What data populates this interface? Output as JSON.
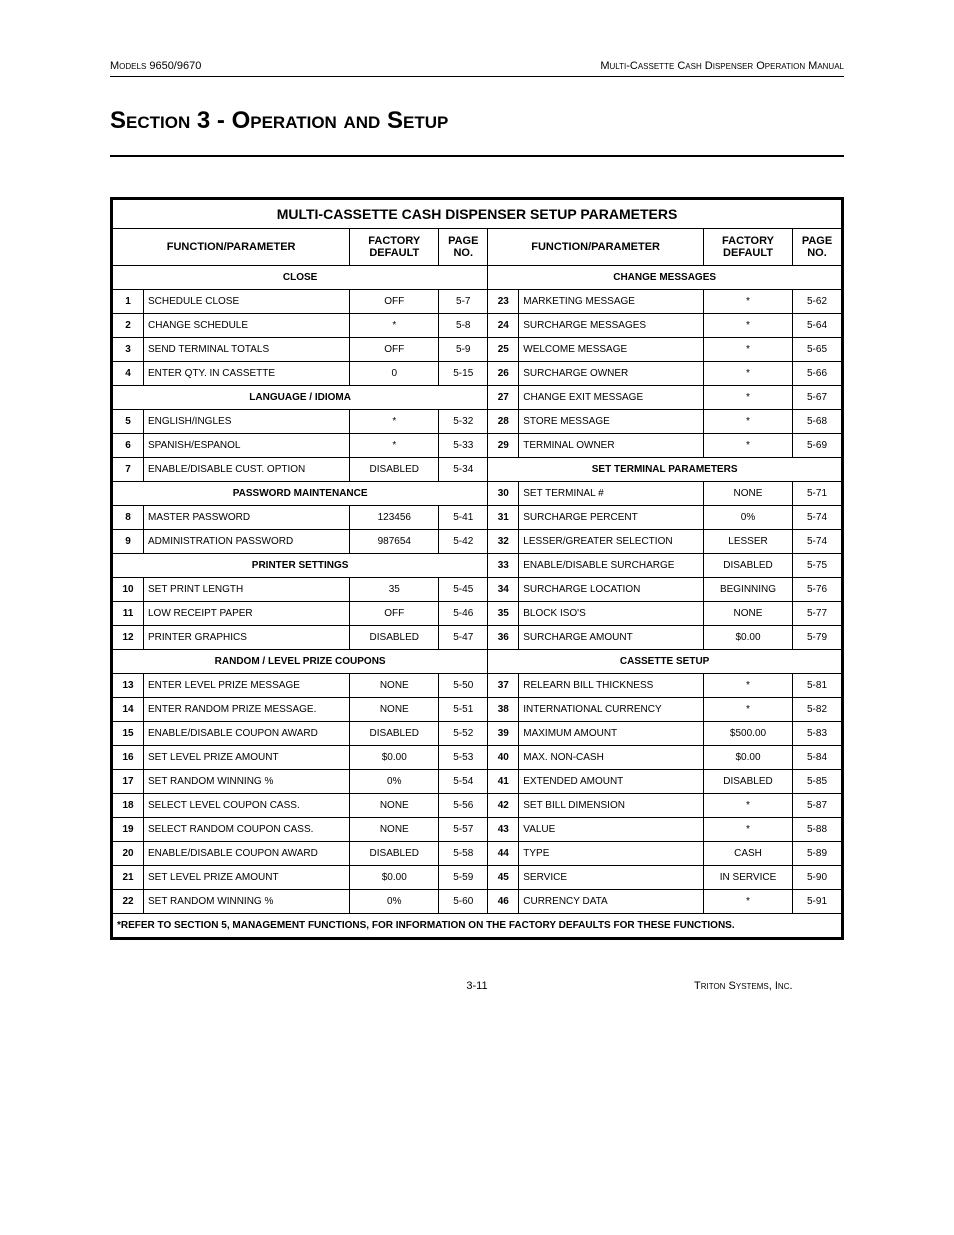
{
  "header": {
    "left": "Models 9650/9670",
    "right": "Multi-Cassette Cash Dispenser Operation Manual"
  },
  "section_title": "Section 3 - Operation and Setup",
  "table": {
    "title": "MULTI-CASSETTE CASH DISPENSER SETUP PARAMETERS",
    "col_headers": {
      "func": "FUNCTION/PARAMETER",
      "def": "FACTORY DEFAULT",
      "page": "PAGE NO."
    },
    "left": [
      {
        "type": "sub",
        "label": "CLOSE"
      },
      {
        "n": "1",
        "p": "SCHEDULE CLOSE",
        "d": "OFF",
        "pg": "5-7"
      },
      {
        "n": "2",
        "p": "CHANGE SCHEDULE",
        "d": "*",
        "pg": "5-8"
      },
      {
        "n": "3",
        "p": "SEND TERMINAL TOTALS",
        "d": "OFF",
        "pg": "5-9"
      },
      {
        "n": "4",
        "p": "ENTER QTY. IN CASSETTE",
        "d": "0",
        "pg": "5-15"
      },
      {
        "type": "sub",
        "label": "LANGUAGE / IDIOMA"
      },
      {
        "n": "5",
        "p": "ENGLISH/INGLES",
        "d": "*",
        "pg": "5-32"
      },
      {
        "n": "6",
        "p": "SPANISH/ESPANOL",
        "d": "*",
        "pg": "5-33"
      },
      {
        "n": "7",
        "p": "ENABLE/DISABLE CUST. OPTION",
        "d": "DISABLED",
        "pg": "5-34"
      },
      {
        "type": "sub",
        "label": "PASSWORD MAINTENANCE"
      },
      {
        "n": "8",
        "p": "MASTER PASSWORD",
        "d": "123456",
        "pg": "5-41"
      },
      {
        "n": "9",
        "p": "ADMINISTRATION PASSWORD",
        "d": "987654",
        "pg": "5-42"
      },
      {
        "type": "sub",
        "label": "PRINTER SETTINGS"
      },
      {
        "n": "10",
        "p": "SET PRINT LENGTH",
        "d": "35",
        "pg": "5-45"
      },
      {
        "n": "11",
        "p": "LOW RECEIPT PAPER",
        "d": "OFF",
        "pg": "5-46"
      },
      {
        "n": "12",
        "p": "PRINTER GRAPHICS",
        "d": "DISABLED",
        "pg": "5-47"
      },
      {
        "type": "sub",
        "label": "RANDOM / LEVEL PRIZE COUPONS"
      },
      {
        "n": "13",
        "p": "ENTER LEVEL PRIZE MESSAGE",
        "d": "NONE",
        "pg": "5-50"
      },
      {
        "n": "14",
        "p": "ENTER RANDOM PRIZE MESSAGE.",
        "d": "NONE",
        "pg": "5-51"
      },
      {
        "n": "15",
        "p": "ENABLE/DISABLE COUPON AWARD",
        "d": "DISABLED",
        "pg": "5-52"
      },
      {
        "n": "16",
        "p": "SET LEVEL PRIZE AMOUNT",
        "d": "$0.00",
        "pg": "5-53"
      },
      {
        "n": "17",
        "p": "SET RANDOM WINNING %",
        "d": "0%",
        "pg": "5-54"
      },
      {
        "n": "18",
        "p": "SELECT LEVEL COUPON CASS.",
        "d": "NONE",
        "pg": "5-56"
      },
      {
        "n": "19",
        "p": "SELECT RANDOM COUPON CASS.",
        "d": "NONE",
        "pg": "5-57"
      },
      {
        "n": "20",
        "p": "ENABLE/DISABLE COUPON AWARD",
        "d": "DISABLED",
        "pg": "5-58"
      },
      {
        "n": "21",
        "p": "SET LEVEL PRIZE AMOUNT",
        "d": "$0.00",
        "pg": "5-59"
      },
      {
        "n": "22",
        "p": "SET RANDOM WINNING %",
        "d": "0%",
        "pg": "5-60"
      }
    ],
    "right": [
      {
        "type": "sub",
        "label": "CHANGE MESSAGES"
      },
      {
        "n": "23",
        "p": "MARKETING MESSAGE",
        "d": "*",
        "pg": "5-62"
      },
      {
        "n": "24",
        "p": "SURCHARGE MESSAGES",
        "d": "*",
        "pg": "5-64"
      },
      {
        "n": "25",
        "p": "WELCOME MESSAGE",
        "d": "*",
        "pg": "5-65"
      },
      {
        "n": "26",
        "p": "SURCHARGE OWNER",
        "d": "*",
        "pg": "5-66"
      },
      {
        "n": "27",
        "p": "CHANGE EXIT MESSAGE",
        "d": "*",
        "pg": "5-67"
      },
      {
        "n": "28",
        "p": "STORE MESSAGE",
        "d": "*",
        "pg": "5-68"
      },
      {
        "n": "29",
        "p": "TERMINAL OWNER",
        "d": "*",
        "pg": "5-69"
      },
      {
        "type": "sub",
        "label": "SET TERMINAL PARAMETERS"
      },
      {
        "n": "30",
        "p": "SET TERMINAL #",
        "d": "NONE",
        "pg": "5-71"
      },
      {
        "n": "31",
        "p": "SURCHARGE PERCENT",
        "d": "0%",
        "pg": "5-74"
      },
      {
        "n": "32",
        "p": "LESSER/GREATER SELECTION",
        "d": "LESSER",
        "pg": "5-74"
      },
      {
        "n": "33",
        "p": "ENABLE/DISABLE SURCHARGE",
        "d": "DISABLED",
        "pg": "5-75"
      },
      {
        "n": "34",
        "p": "SURCHARGE LOCATION",
        "d": "BEGINNING",
        "pg": "5-76"
      },
      {
        "n": "35",
        "p": "BLOCK ISO'S",
        "d": "NONE",
        "pg": "5-77"
      },
      {
        "n": "36",
        "p": "SURCHARGE AMOUNT",
        "d": "$0.00",
        "pg": "5-79"
      },
      {
        "type": "sub",
        "label": "CASSETTE SETUP"
      },
      {
        "n": "37",
        "p": "RELEARN BILL THICKNESS",
        "d": "*",
        "pg": "5-81"
      },
      {
        "n": "38",
        "p": "INTERNATIONAL CURRENCY",
        "d": "*",
        "pg": "5-82"
      },
      {
        "n": "39",
        "p": "MAXIMUM AMOUNT",
        "d": "$500.00",
        "pg": "5-83"
      },
      {
        "n": "40",
        "p": "MAX. NON-CASH",
        "d": "$0.00",
        "pg": "5-84"
      },
      {
        "n": "41",
        "p": "EXTENDED AMOUNT",
        "d": "DISABLED",
        "pg": "5-85"
      },
      {
        "n": "42",
        "p": "SET BILL DIMENSION",
        "d": "*",
        "pg": "5-87"
      },
      {
        "n": "43",
        "p": "VALUE",
        "d": "*",
        "pg": "5-88"
      },
      {
        "n": "44",
        "p": "TYPE",
        "d": "CASH",
        "pg": "5-89"
      },
      {
        "n": "45",
        "p": "SERVICE",
        "d": "IN SERVICE",
        "pg": "5-90"
      },
      {
        "n": "46",
        "p": "CURRENCY DATA",
        "d": "*",
        "pg": "5-91"
      }
    ],
    "footnote": "*REFER TO SECTION 5, MANAGEMENT FUNCTIONS, FOR INFORMATION ON THE FACTORY DEFAULTS FOR THESE FUNCTIONS."
  },
  "footer": {
    "page": "3-11",
    "company": "Triton Systems, Inc."
  }
}
